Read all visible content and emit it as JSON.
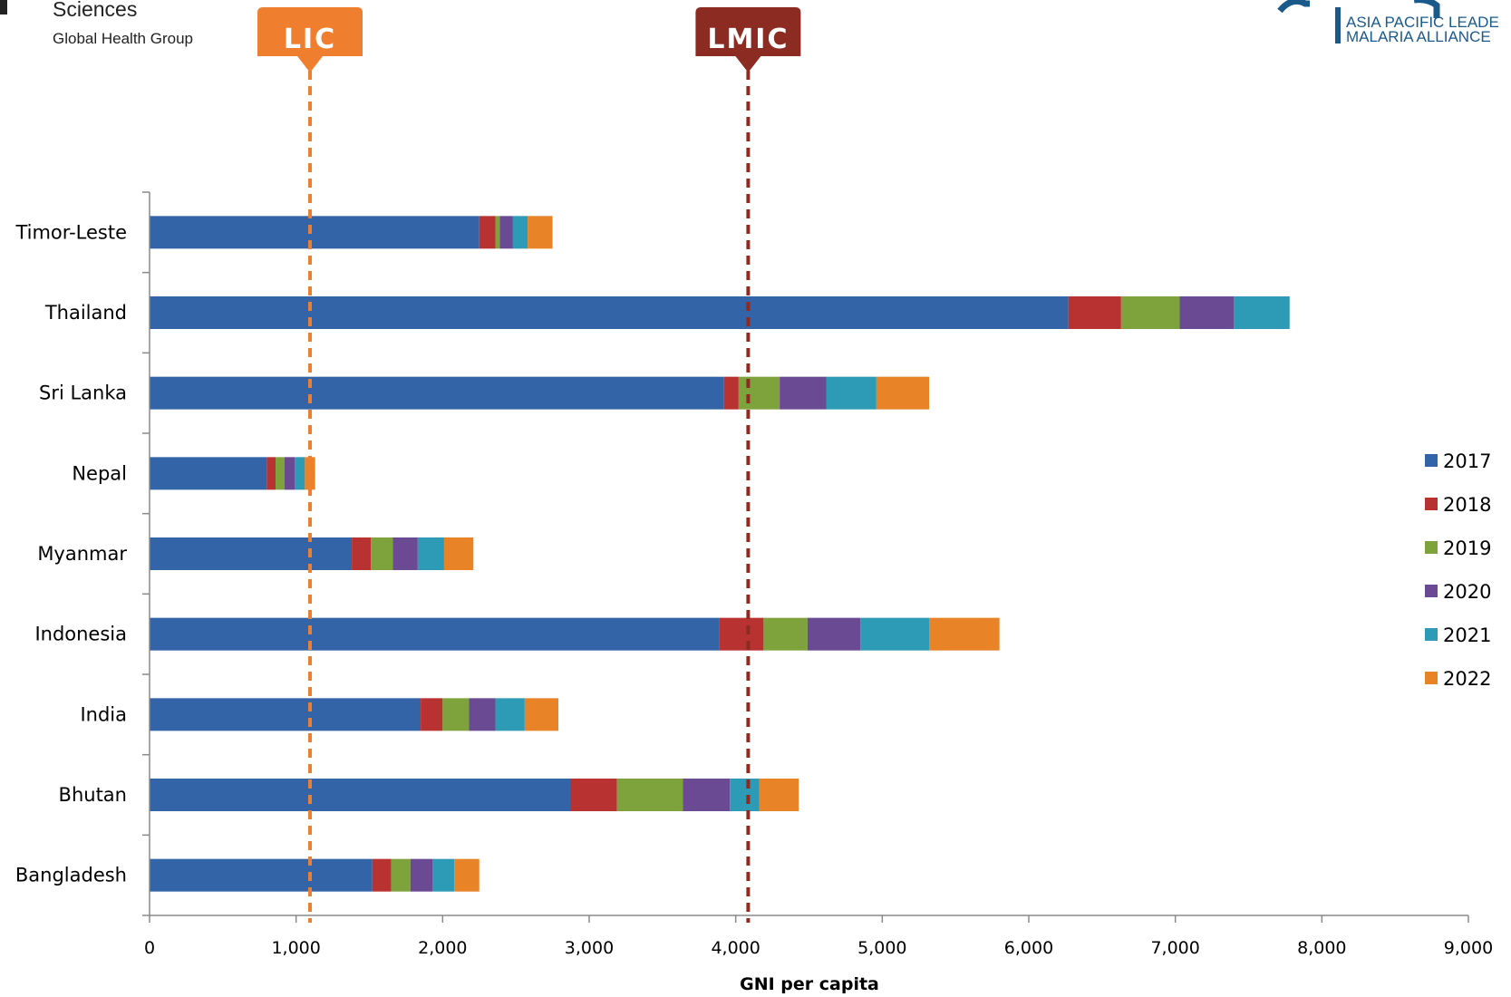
{
  "header": {
    "left_logo_line1": "Sciences",
    "left_logo_line2": "Global Health Group",
    "right_logo_line1": "ASIA PACIFIC LEADE",
    "right_logo_line2": "MALARIA ALLIANCE"
  },
  "chart_data": {
    "type": "bar",
    "orientation": "horizontal",
    "stacked": true,
    "title": "",
    "xlabel": "GNI per capita",
    "ylabel": "",
    "xlim": [
      0,
      9000
    ],
    "xticks": [
      0,
      1000,
      2000,
      3000,
      4000,
      5000,
      6000,
      7000,
      8000,
      9000
    ],
    "xtick_labels": [
      "0",
      "1,000",
      "2,000",
      "3,000",
      "4,000",
      "5,000",
      "6,000",
      "7,000",
      "8,000",
      "9,000"
    ],
    "grid": false,
    "legend_position": "right",
    "categories": [
      "Bangladesh",
      "Bhutan",
      "India",
      "Indonesia",
      "Myanmar",
      "Nepal",
      "Sri Lanka",
      "Thailand",
      "Timor-Leste"
    ],
    "series": [
      {
        "name": "2017",
        "color": "#3464a8",
        "values": [
          1520,
          2870,
          1850,
          3890,
          1380,
          800,
          3920,
          6270,
          2250
        ]
      },
      {
        "name": "2018",
        "color": "#b83232",
        "values": [
          130,
          320,
          150,
          300,
          130,
          60,
          100,
          360,
          110
        ]
      },
      {
        "name": "2019",
        "color": "#7ea23c",
        "values": [
          130,
          450,
          180,
          300,
          150,
          60,
          280,
          400,
          30
        ]
      },
      {
        "name": "2020",
        "color": "#6b4a94",
        "values": [
          150,
          320,
          180,
          360,
          170,
          70,
          320,
          370,
          90
        ]
      },
      {
        "name": "2021",
        "color": "#2d9ab6",
        "values": [
          150,
          200,
          200,
          470,
          180,
          70,
          340,
          380,
          100
        ]
      },
      {
        "name": "2022",
        "color": "#e88328",
        "values": [
          170,
          270,
          230,
          480,
          200,
          70,
          360,
          0,
          170
        ]
      }
    ],
    "reference_lines": [
      {
        "label": "LIC",
        "value": 1095,
        "color": "#ef7f2e"
      },
      {
        "label": "LMIC",
        "value": 4085,
        "color": "#8b2b22"
      }
    ]
  }
}
